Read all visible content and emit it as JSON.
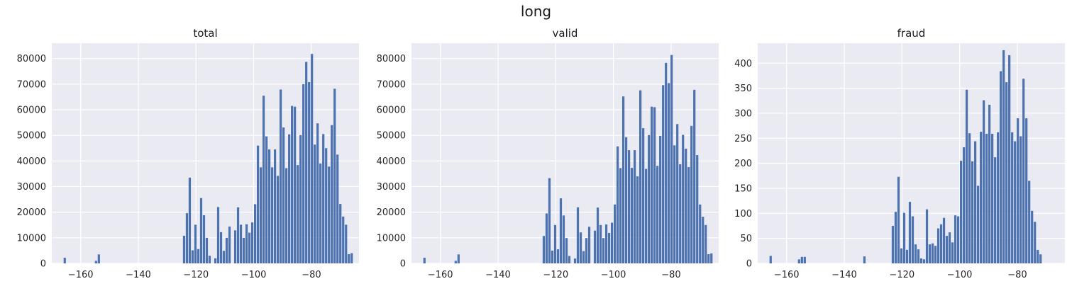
{
  "figure": {
    "title": "long"
  },
  "chart_data": [
    {
      "type": "bar",
      "title": "total",
      "xlabel": "",
      "ylabel": "",
      "xlim": [
        -170.0,
        -63.5
      ],
      "ylim": [
        0,
        86000
      ],
      "grid": true,
      "bar_color": "#4c72b0",
      "background": "#eaeaf2",
      "x_ticks": [
        -160,
        -140,
        -120,
        -100,
        -80
      ],
      "x_tick_labels": [
        "−160",
        "−140",
        "−120",
        "−100",
        "−80"
      ],
      "y_ticks": [
        0,
        10000,
        20000,
        30000,
        40000,
        50000,
        60000,
        70000,
        80000
      ],
      "y_tick_labels": [
        "0",
        "10000",
        "20000",
        "30000",
        "40000",
        "50000",
        "60000",
        "70000",
        "80000"
      ],
      "bin_start": -166.0,
      "bin_width": 0.985,
      "values": [
        2200,
        0,
        0,
        0,
        0,
        0,
        0,
        0,
        0,
        0,
        0,
        1000,
        3500,
        0,
        0,
        0,
        0,
        0,
        0,
        0,
        0,
        0,
        0,
        0,
        0,
        0,
        0,
        0,
        0,
        0,
        0,
        0,
        0,
        0,
        0,
        0,
        0,
        0,
        0,
        0,
        0,
        0,
        10800,
        19600,
        33500,
        5100,
        15100,
        5600,
        25500,
        18800,
        10000,
        3000,
        0,
        2000,
        22000,
        12200,
        4900,
        10000,
        14400,
        0,
        12900,
        21900,
        15100,
        10000,
        15300,
        12000,
        16000,
        23100,
        46000,
        37500,
        65500,
        49600,
        44500,
        37500,
        44500,
        34200,
        67900,
        53100,
        37200,
        50400,
        61500,
        61200,
        38400,
        50100,
        70000,
        78700,
        70800,
        81800,
        46400,
        54700,
        39000,
        50500,
        45000,
        37800,
        54000,
        68200,
        42500,
        23200,
        18300,
        15100,
        3600,
        4000
      ]
    },
    {
      "type": "bar",
      "title": "valid",
      "xlabel": "",
      "ylabel": "",
      "xlim": [
        -170.0,
        -63.5
      ],
      "ylim": [
        0,
        86000
      ],
      "grid": true,
      "bar_color": "#4c72b0",
      "background": "#eaeaf2",
      "x_ticks": [
        -160,
        -140,
        -120,
        -100,
        -80
      ],
      "x_tick_labels": [
        "−160",
        "−140",
        "−120",
        "−100",
        "−80"
      ],
      "y_ticks": [
        0,
        10000,
        20000,
        30000,
        40000,
        50000,
        60000,
        70000,
        80000
      ],
      "y_tick_labels": [
        "0",
        "10000",
        "20000",
        "30000",
        "40000",
        "50000",
        "60000",
        "70000",
        "80000"
      ],
      "bin_start": -166.0,
      "bin_width": 0.985,
      "values": [
        2200,
        0,
        0,
        0,
        0,
        0,
        0,
        0,
        0,
        0,
        0,
        1000,
        3500,
        0,
        0,
        0,
        0,
        0,
        0,
        0,
        0,
        0,
        0,
        0,
        0,
        0,
        0,
        0,
        0,
        0,
        0,
        0,
        0,
        0,
        0,
        0,
        0,
        0,
        0,
        0,
        0,
        0,
        10700,
        19500,
        33300,
        5000,
        15000,
        5500,
        25400,
        18700,
        9900,
        2900,
        0,
        1900,
        21900,
        12100,
        4800,
        9900,
        14300,
        0,
        12800,
        21800,
        15000,
        9900,
        15200,
        11900,
        15900,
        23000,
        45700,
        37200,
        65200,
        49300,
        44200,
        37300,
        44200,
        34000,
        67600,
        52800,
        36900,
        50100,
        61200,
        61000,
        38100,
        49800,
        69600,
        78300,
        70400,
        81400,
        46100,
        54400,
        38700,
        50200,
        44800,
        37600,
        53700,
        67800,
        42300,
        23000,
        18200,
        15000,
        3600,
        3900
      ]
    },
    {
      "type": "bar",
      "title": "fraud",
      "xlabel": "",
      "ylabel": "",
      "xlim": [
        -170.0,
        -63.5
      ],
      "ylim": [
        0,
        440
      ],
      "grid": true,
      "bar_color": "#4c72b0",
      "background": "#eaeaf2",
      "x_ticks": [
        -160,
        -140,
        -120,
        -100,
        -80
      ],
      "x_tick_labels": [
        "−160",
        "−140",
        "−120",
        "−100",
        "−80"
      ],
      "y_ticks": [
        0,
        50,
        100,
        150,
        200,
        250,
        300,
        350,
        400
      ],
      "y_tick_labels": [
        "0",
        "50",
        "100",
        "150",
        "200",
        "250",
        "300",
        "350",
        "400"
      ],
      "bin_start": -166.0,
      "bin_width": 0.985,
      "values": [
        15,
        0,
        0,
        0,
        0,
        0,
        0,
        0,
        0,
        0,
        8,
        13,
        13,
        0,
        0,
        0,
        0,
        0,
        0,
        0,
        0,
        0,
        0,
        0,
        0,
        0,
        0,
        0,
        0,
        0,
        0,
        0,
        0,
        14,
        0,
        0,
        0,
        0,
        0,
        0,
        0,
        0,
        0,
        75,
        103,
        173,
        30,
        101,
        27,
        123,
        94,
        38,
        28,
        10,
        8,
        108,
        38,
        40,
        35,
        70,
        78,
        91,
        55,
        62,
        42,
        96,
        94,
        205,
        232,
        347,
        260,
        204,
        244,
        155,
        263,
        326,
        259,
        317,
        259,
        212,
        262,
        384,
        426,
        362,
        416,
        262,
        244,
        290,
        254,
        369,
        290,
        165,
        105,
        83,
        27,
        18
      ]
    }
  ]
}
